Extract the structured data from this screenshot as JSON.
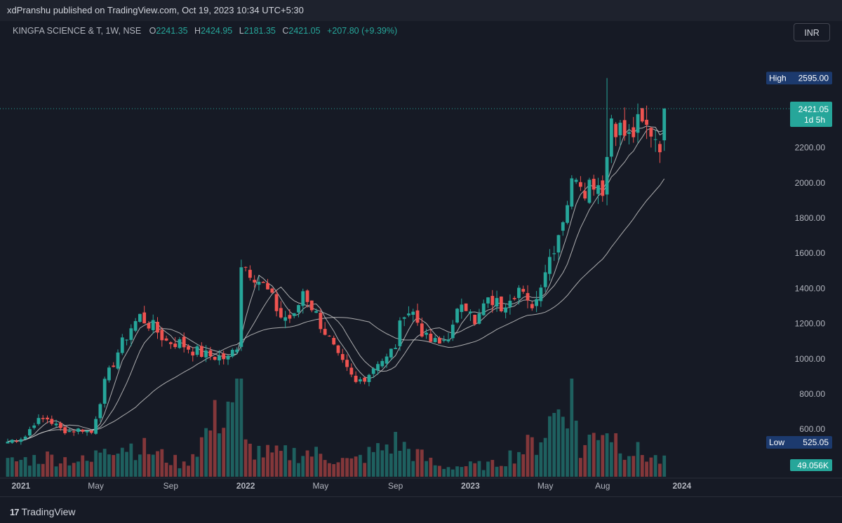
{
  "publisher": {
    "text": "xdPranshu published on TradingView.com, Oct 19, 2023 10:34 UTC+5:30"
  },
  "legend": {
    "symbol": "KINGFA SCIENCE & T, 1W, NSE",
    "open_label": "O",
    "open": "2241.35",
    "high_label": "H",
    "high": "2424.95",
    "low_label": "L",
    "low": "2181.35",
    "close_label": "C",
    "close": "2421.05",
    "change": "+207.80 (+9.39%)"
  },
  "currency_button": "INR",
  "badges": {
    "high_label": "High",
    "high_value": "2595.00",
    "low_label": "Low",
    "low_value": "525.05",
    "last_price": "2421.05",
    "countdown": "1d 5h",
    "volume": "49.056K"
  },
  "footer": {
    "logo_text": "TradingView",
    "logo_icon": "tradingview-logo-icon"
  },
  "colors": {
    "up": "#26a69a",
    "down": "#ef5350",
    "background": "#161a25",
    "ma": "#c8c8c8"
  },
  "chart_data": {
    "type": "candlestick",
    "interval": "1W",
    "ylim": [
      330,
      2720
    ],
    "y_ticks": [
      400,
      600,
      800,
      1000,
      1200,
      1400,
      1600,
      1800,
      2000,
      2200
    ],
    "x_ticks": [
      "2021",
      "May",
      "Sep",
      "2022",
      "May",
      "Sep",
      "2023",
      "May",
      "Aug",
      "2024"
    ],
    "x_tick_week_index": [
      3,
      20,
      37,
      54,
      71,
      88,
      105,
      122,
      135,
      153
    ],
    "grid": false,
    "high": 2595.0,
    "low": 525.05,
    "last_close": 2421.05,
    "close_keypoints": [
      [
        0,
        530
      ],
      [
        4,
        560
      ],
      [
        6,
        640
      ],
      [
        9,
        660
      ],
      [
        12,
        600
      ],
      [
        14,
        590
      ],
      [
        17,
        600
      ],
      [
        19,
        580
      ],
      [
        22,
        860
      ],
      [
        25,
        1040
      ],
      [
        28,
        1180
      ],
      [
        30,
        1240
      ],
      [
        33,
        1180
      ],
      [
        36,
        1100
      ],
      [
        39,
        1090
      ],
      [
        42,
        1050
      ],
      [
        45,
        1020
      ],
      [
        48,
        1010
      ],
      [
        50,
        1000
      ],
      [
        52,
        1080
      ],
      [
        53,
        1550
      ],
      [
        56,
        1480
      ],
      [
        59,
        1380
      ],
      [
        62,
        1240
      ],
      [
        65,
        1230
      ],
      [
        67,
        1390
      ],
      [
        69,
        1300
      ],
      [
        71,
        1200
      ],
      [
        73,
        1110
      ],
      [
        75,
        1000
      ],
      [
        77,
        930
      ],
      [
        79,
        860
      ],
      [
        82,
        920
      ],
      [
        84,
        990
      ],
      [
        86,
        1000
      ],
      [
        88,
        1080
      ],
      [
        90,
        1280
      ],
      [
        92,
        1260
      ],
      [
        95,
        1110
      ],
      [
        98,
        1080
      ],
      [
        101,
        1170
      ],
      [
        103,
        1330
      ],
      [
        105,
        1300
      ],
      [
        106,
        1180
      ],
      [
        108,
        1300
      ],
      [
        110,
        1330
      ],
      [
        112,
        1300
      ],
      [
        114,
        1370
      ],
      [
        116,
        1400
      ],
      [
        118,
        1300
      ],
      [
        120,
        1340
      ],
      [
        121,
        1450
      ],
      [
        123,
        1580
      ],
      [
        125,
        1720
      ],
      [
        127,
        1900
      ],
      [
        129,
        2070
      ],
      [
        131,
        1980
      ],
      [
        133,
        2020
      ],
      [
        135,
        1980
      ],
      [
        136,
        2150
      ],
      [
        137,
        2380
      ],
      [
        139,
        2300
      ],
      [
        141,
        2250
      ],
      [
        143,
        2320
      ],
      [
        146,
        2300
      ],
      [
        148,
        2240
      ],
      [
        149,
        2421.05
      ]
    ],
    "volume_keypoints": [
      [
        0,
        0.15
      ],
      [
        9,
        0.2
      ],
      [
        19,
        0.15
      ],
      [
        22,
        0.35
      ],
      [
        30,
        0.3
      ],
      [
        40,
        0.12
      ],
      [
        53,
        0.95
      ],
      [
        54,
        0.3
      ],
      [
        60,
        0.22
      ],
      [
        68,
        0.25
      ],
      [
        78,
        0.15
      ],
      [
        88,
        0.35
      ],
      [
        98,
        0.1
      ],
      [
        110,
        0.12
      ],
      [
        120,
        0.35
      ],
      [
        128,
        0.9
      ],
      [
        130,
        0.25
      ],
      [
        135,
        0.55
      ],
      [
        140,
        0.3
      ],
      [
        149,
        0.15
      ]
    ],
    "volume_last": "49.056K",
    "moving_averages": [
      {
        "period": 5
      },
      {
        "period": 10
      },
      {
        "period": 30
      }
    ]
  }
}
